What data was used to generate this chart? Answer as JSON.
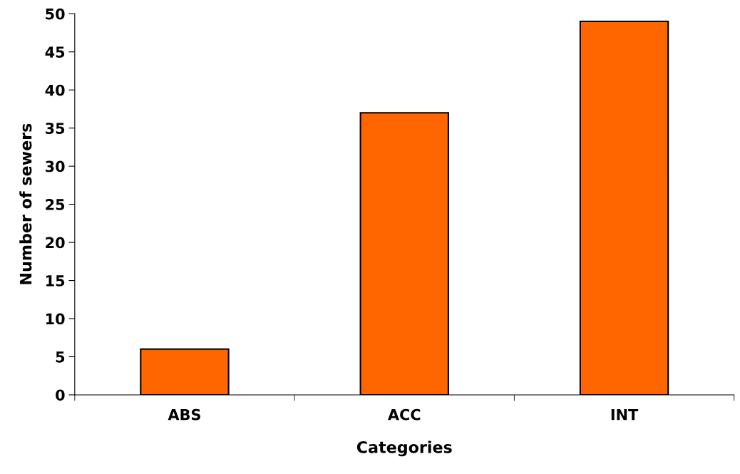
{
  "chart_data": {
    "type": "bar",
    "xlabel": "Categories",
    "ylabel": "Number of sewers",
    "categories": [
      "ABS",
      "ACC",
      "INT"
    ],
    "values": [
      6,
      37,
      49
    ],
    "color": "#ff6600",
    "ylim": [
      0,
      50
    ],
    "yticks": [
      0,
      5,
      10,
      15,
      20,
      25,
      30,
      35,
      40,
      45,
      50
    ],
    "grid": false,
    "legend": false
  }
}
